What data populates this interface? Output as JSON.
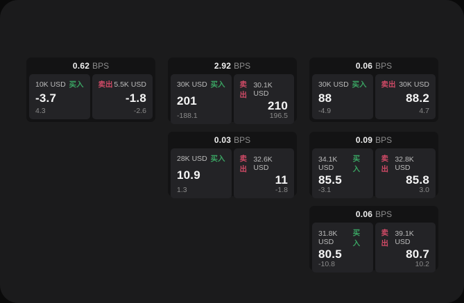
{
  "page": {
    "unit_label": "BPS",
    "buy_label": "买入",
    "sell_label": "卖出"
  },
  "colors": {
    "outer_bg": "#0a0a0a",
    "page_bg": "#1b1b1c",
    "card_bg": "#131314",
    "panel_bg": "#232326",
    "buy_green": "#3aa362",
    "sell_red": "#cf4a66",
    "value_white": "#f5f5f5",
    "label_gray": "#bcbcbc",
    "delta_gray": "#8b8b8b"
  },
  "cards": [
    {
      "bps": "0.62",
      "buy": {
        "amount": "10K USD",
        "side": "买入",
        "value": "-3.7",
        "delta": "4.3"
      },
      "sell": {
        "amount": "5.5K USD",
        "side": "卖出",
        "value": "-1.8",
        "delta": "-2.6"
      }
    },
    {
      "bps": "2.92",
      "buy": {
        "amount": "30K USD",
        "side": "买入",
        "value": "201",
        "delta": "-188.1"
      },
      "sell": {
        "amount": "30.1K USD",
        "side": "卖出",
        "value": "210",
        "delta": "196.5"
      }
    },
    {
      "bps": "0.06",
      "buy": {
        "amount": "30K USD",
        "side": "买入",
        "value": "88",
        "delta": "-4.9"
      },
      "sell": {
        "amount": "30K USD",
        "side": "卖出",
        "value": "88.2",
        "delta": "4.7"
      }
    },
    {
      "bps": "0.03",
      "buy": {
        "amount": "28K USD",
        "side": "买入",
        "value": "10.9",
        "delta": "1.3"
      },
      "sell": {
        "amount": "32.6K USD",
        "side": "卖出",
        "value": "11",
        "delta": "-1.8"
      }
    },
    {
      "bps": "0.09",
      "buy": {
        "amount": "34.1K USD",
        "side": "买入",
        "value": "85.5",
        "delta": "-3.1"
      },
      "sell": {
        "amount": "32.8K USD",
        "side": "卖出",
        "value": "85.8",
        "delta": "3.0"
      }
    },
    {
      "bps": "0.06",
      "buy": {
        "amount": "31.8K USD",
        "side": "买入",
        "value": "80.5",
        "delta": "-10.8"
      },
      "sell": {
        "amount": "39.1K USD",
        "side": "卖出",
        "value": "80.7",
        "delta": "10.2"
      }
    }
  ]
}
